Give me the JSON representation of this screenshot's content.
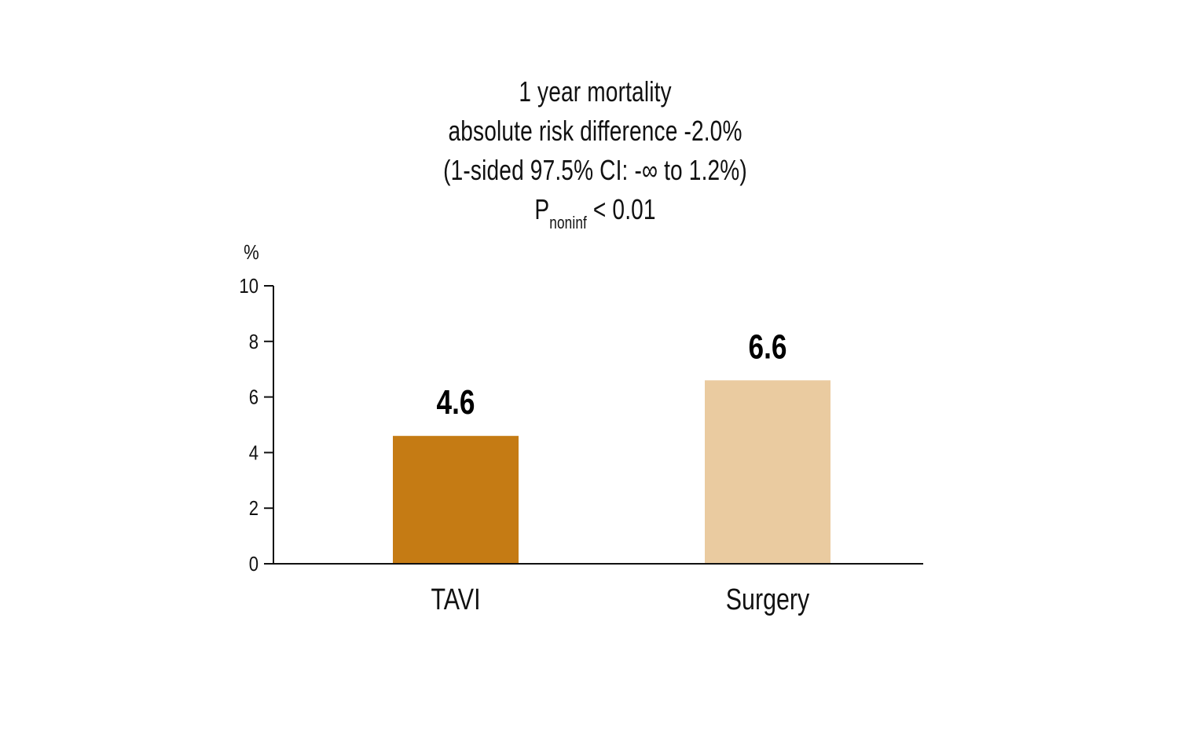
{
  "chart_data": {
    "type": "bar",
    "title_lines": [
      "1 year mortality",
      "absolute risk difference -2.0%",
      "(1-sided 97.5% CI: -∞ to 1.2%)"
    ],
    "p_value": {
      "prefix": "P",
      "subscript": "noninf",
      "suffix": " < 0.01"
    },
    "categories": [
      "TAVI",
      "Surgery"
    ],
    "values": [
      4.6,
      6.6
    ],
    "value_labels": [
      "4.6",
      "6.6"
    ],
    "colors": [
      "#C57B14",
      "#EACBA0"
    ],
    "xlabel": "",
    "ylabel": "%",
    "ylim": [
      0,
      10
    ],
    "yticks": [
      0,
      2,
      4,
      6,
      8,
      10
    ],
    "grid": false,
    "legend": "none"
  }
}
